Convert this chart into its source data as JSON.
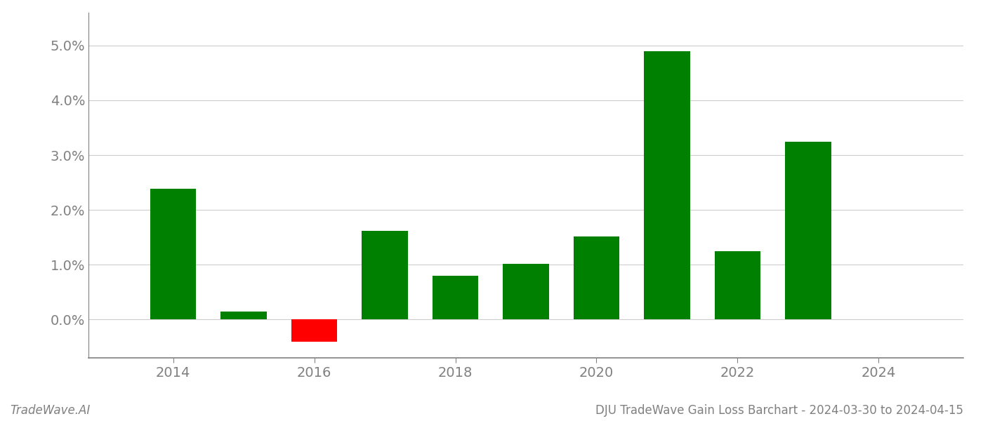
{
  "years": [
    2014,
    2015,
    2016,
    2017,
    2018,
    2019,
    2020,
    2021,
    2022,
    2023
  ],
  "values": [
    0.0238,
    0.0015,
    -0.004,
    0.0162,
    0.008,
    0.0101,
    0.0152,
    0.049,
    0.0125,
    0.0325
  ],
  "bar_colors": [
    "#008000",
    "#008000",
    "#ff0000",
    "#008000",
    "#008000",
    "#008000",
    "#008000",
    "#008000",
    "#008000",
    "#008000"
  ],
  "title": "DJU TradeWave Gain Loss Barchart - 2024-03-30 to 2024-04-15",
  "watermark": "TradeWave.AI",
  "ylim_min": -0.007,
  "ylim_max": 0.056,
  "ytick_values": [
    0.0,
    0.01,
    0.02,
    0.03,
    0.04,
    0.05
  ],
  "background_color": "#ffffff",
  "bar_width": 0.65,
  "grid_color": "#cccccc",
  "axis_label_color": "#808080",
  "title_color": "#808080",
  "watermark_color": "#808080",
  "tick_fontsize": 14,
  "footer_fontsize": 12,
  "xlim_min": 2012.8,
  "xlim_max": 2025.2,
  "xticks": [
    2014,
    2016,
    2018,
    2020,
    2022,
    2024
  ]
}
